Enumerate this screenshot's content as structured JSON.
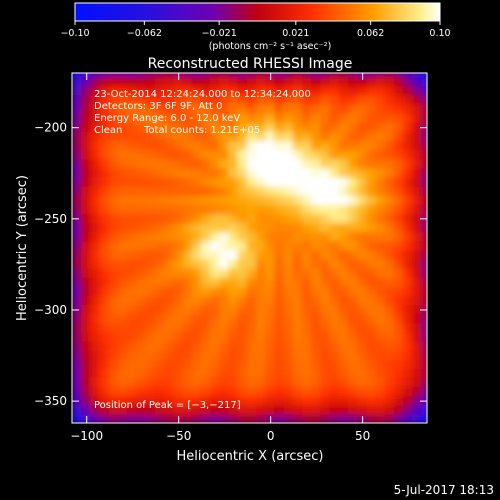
{
  "chart_data": {
    "type": "heatmap",
    "title": "Reconstructed RHESSI Image",
    "xlabel": "Heliocentric X (arcsec)",
    "ylabel": "Heliocentric Y (arcsec)",
    "xlim": [
      -108,
      85
    ],
    "ylim": [
      -362,
      -170
    ],
    "x_ticks": [
      -100,
      -50,
      0,
      50
    ],
    "x_tick_labels": [
      "−100",
      "−50",
      "0",
      "50"
    ],
    "y_ticks": [
      -200,
      -250,
      -300,
      -350
    ],
    "y_tick_labels": [
      "−200",
      "−250",
      "−300",
      "−350"
    ],
    "colorbar": {
      "min": -0.1,
      "max": 0.1,
      "ticks": [
        -0.1,
        -0.062,
        -0.021,
        0.021,
        0.062,
        0.1
      ],
      "tick_labels": [
        "−0.10",
        "−0.062",
        "−0.021",
        "0.021",
        "0.062",
        "0.10"
      ],
      "units_label": "(photons cm⁻² s⁻¹ asec⁻²)"
    },
    "annotations": {
      "time_range": "23-Oct-2014 12:24:24.000 to 12:34:24.000",
      "detectors": "Detectors: 3F 6F 9F, Att 0",
      "energy": "Energy Range: 6.0 - 12.0 keV",
      "method": "Clean",
      "counts": "Total counts: 1.21E+05",
      "peak": "Position of Peak = [−3,−217]"
    },
    "sources": [
      {
        "x": -3,
        "y": -217,
        "peak": 0.1
      },
      {
        "x": 37,
        "y": -238,
        "peak": 0.085
      },
      {
        "x": 18,
        "y": -227,
        "peak": 0.07
      },
      {
        "x": -27,
        "y": -268,
        "peak": 0.092
      }
    ],
    "background_level": 0.04
  },
  "footer_date": "5-Jul-2017 18:13"
}
